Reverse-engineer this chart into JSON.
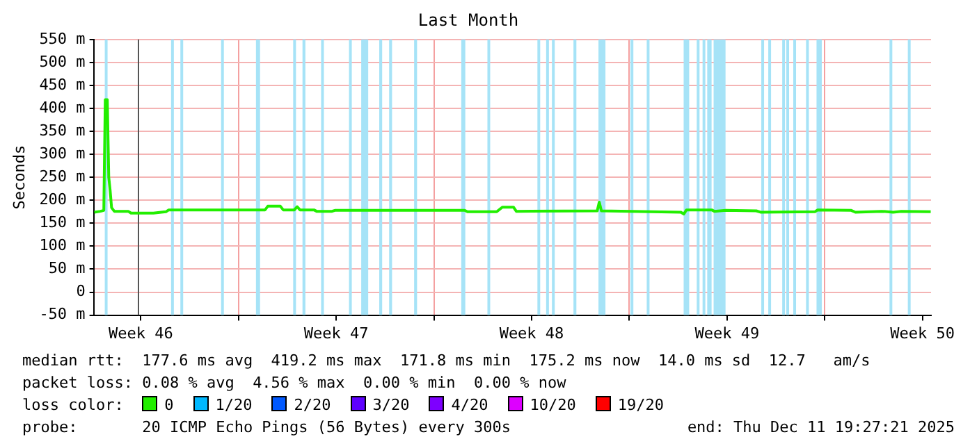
{
  "chart_data": {
    "type": "line",
    "title": "Last Month",
    "ylabel": "Seconds",
    "xlim": [
      "2025-11-11T19:27",
      "2025-12-11T19:27"
    ],
    "xticks": [
      {
        "value": "2025-11-13T12:00",
        "label": "Week 46"
      },
      {
        "value": "2025-11-17",
        "label": null
      },
      {
        "value": "2025-11-20T12:00",
        "label": "Week 47"
      },
      {
        "value": "2025-11-24",
        "label": null
      },
      {
        "value": "2025-11-27T12:00",
        "label": "Week 48"
      },
      {
        "value": "2025-12-01",
        "label": null
      },
      {
        "value": "2025-12-04T12:00",
        "label": "Week 49"
      },
      {
        "value": "2025-12-08",
        "label": null
      },
      {
        "value": "2025-12-11T12:00",
        "label": "Week 50"
      }
    ],
    "ylim": [
      -50,
      550
    ],
    "yticks": [
      {
        "value": -50,
        "label": "-50 m"
      },
      0,
      {
        "value": 50,
        "label": "50 m"
      },
      {
        "value": 100,
        "label": "100 m"
      },
      {
        "value": 150,
        "label": "150 m"
      },
      {
        "value": 200,
        "label": "200 m"
      },
      {
        "value": 250,
        "label": "250 m"
      },
      {
        "value": 300,
        "label": "300 m"
      },
      {
        "value": 350,
        "label": "350 m"
      },
      {
        "value": 400,
        "label": "400 m"
      },
      {
        "value": 450,
        "label": "450 m"
      },
      {
        "value": 500,
        "label": "500 m"
      },
      {
        "value": 550,
        "label": "550 m"
      }
    ],
    "grid": true,
    "marker": "none",
    "line_style": "solid",
    "legend": "bottom",
    "legend_title": "loss color:",
    "x": [
      "2025-11-11T20:00",
      "2025-11-12T01:15",
      "2025-11-12T04:10",
      "2025-11-12T05:25",
      "2025-11-12T07:10",
      "2025-11-12T08:25",
      "2025-11-12T09:35",
      "2025-11-12T10:50",
      "2025-11-12T13:10",
      "2025-11-13T01:10",
      "2025-11-13T03:35",
      "2025-11-13T22:50",
      "2025-11-14T09:35",
      "2025-11-14T12:00",
      "2025-11-17T22:50",
      "2025-11-18T01:10",
      "2025-11-18T12:00",
      "2025-11-18T14:25",
      "2025-11-19T00:00",
      "2025-11-19T02:25",
      "2025-11-19T04:50",
      "2025-11-19T16:50",
      "2025-11-19T19:10",
      "2025-11-20T08:25",
      "2025-11-20T10:50",
      "2025-11-25T02:25",
      "2025-11-25T04:50",
      "2025-11-26T06:00",
      "2025-11-26T08:25",
      "2025-11-26T10:50",
      "2025-11-26T20:25",
      "2025-11-26T22:50",
      "2025-11-29T20:25",
      "2025-11-29T22:10",
      "2025-11-30T00:00",
      "2025-12-02T20:25",
      "2025-12-02T22:50",
      "2025-12-03T01:10",
      "2025-12-03T22:50",
      "2025-12-04T01:10",
      "2025-12-04T10:50",
      "2025-12-05T13:10",
      "2025-12-05T16:50",
      "2025-12-07T15:35",
      "2025-12-07T18:00",
      "2025-12-08T22:50",
      "2025-12-09T02:25",
      "2025-12-10T01:10",
      "2025-12-10T10:50",
      "2025-12-10T18:00",
      "2025-12-11T19:10"
    ],
    "series": [
      {
        "name": "0",
        "color": "#22ee00",
        "values": [
          174,
          176,
          178,
          419,
          419,
          250,
          222,
          184,
          176,
          176,
          172,
          172,
          175,
          179,
          179,
          187,
          187,
          179,
          179,
          186,
          179,
          179,
          176,
          176,
          178,
          178,
          175,
          175,
          180,
          185,
          185,
          176,
          177,
          196,
          177,
          174,
          170,
          179,
          179,
          176,
          178,
          177,
          174,
          175,
          179,
          178,
          174,
          176,
          174,
          176,
          175
        ]
      },
      {
        "name": "1/20",
        "color": "#00b8ff",
        "values": [
          null,
          null,
          null,
          null,
          null,
          null,
          null,
          null,
          null,
          null,
          null,
          null,
          null,
          null,
          null,
          null,
          null,
          null,
          null,
          null,
          null,
          null,
          null,
          null,
          null,
          null,
          null,
          null,
          null,
          null,
          null,
          null,
          null,
          null,
          null,
          null,
          null,
          null,
          null,
          null,
          null,
          null,
          null,
          null,
          null,
          null,
          null,
          null,
          null,
          null,
          null
        ]
      },
      {
        "name": "2/20",
        "color": "#0059ff",
        "values": [
          null,
          null,
          null,
          null,
          null,
          null,
          null,
          null,
          null,
          null,
          null,
          null,
          null,
          null,
          null,
          null,
          null,
          null,
          null,
          null,
          null,
          null,
          null,
          null,
          null,
          null,
          null,
          null,
          null,
          null,
          null,
          null,
          null,
          null,
          null,
          null,
          null,
          null,
          null,
          null,
          null,
          null,
          null,
          null,
          null,
          null,
          null,
          null,
          null,
          null,
          null
        ]
      },
      {
        "name": "3/20",
        "color": "#5e00ff",
        "values": [
          null,
          null,
          null,
          null,
          null,
          null,
          null,
          null,
          null,
          null,
          null,
          null,
          null,
          null,
          null,
          null,
          null,
          null,
          null,
          null,
          null,
          null,
          null,
          null,
          null,
          null,
          null,
          null,
          null,
          null,
          null,
          null,
          null,
          null,
          null,
          null,
          null,
          null,
          null,
          null,
          null,
          null,
          null,
          null,
          null,
          null,
          null,
          null,
          null,
          null,
          null
        ]
      },
      {
        "name": "4/20",
        "color": "#7e00ff",
        "values": [
          null,
          null,
          null,
          null,
          null,
          null,
          null,
          null,
          null,
          null,
          null,
          null,
          null,
          null,
          null,
          null,
          null,
          null,
          null,
          null,
          null,
          null,
          null,
          null,
          null,
          null,
          null,
          null,
          null,
          null,
          null,
          null,
          null,
          null,
          null,
          null,
          null,
          null,
          null,
          null,
          null,
          null,
          null,
          null,
          null,
          null,
          null,
          null,
          null,
          null,
          null
        ]
      },
      {
        "name": "10/20",
        "color": "#dd00ff",
        "values": [
          null,
          null,
          null,
          null,
          null,
          null,
          null,
          null,
          null,
          null,
          null,
          null,
          null,
          null,
          null,
          null,
          null,
          null,
          null,
          null,
          null,
          null,
          null,
          null,
          null,
          null,
          null,
          null,
          null,
          null,
          null,
          null,
          null,
          null,
          null,
          null,
          null,
          null,
          null,
          null,
          null,
          null,
          null,
          null,
          null,
          null,
          null,
          null,
          null,
          null,
          null
        ]
      },
      {
        "name": "19/20",
        "color": "#ff0000",
        "values": [
          null,
          null,
          null,
          null,
          null,
          null,
          null,
          null,
          null,
          null,
          null,
          null,
          null,
          null,
          null,
          null,
          null,
          null,
          null,
          null,
          null,
          null,
          null,
          null,
          null,
          null,
          null,
          null,
          null,
          null,
          null,
          null,
          null,
          null,
          null,
          null,
          null,
          null,
          null,
          null,
          null,
          null,
          null,
          null,
          null,
          null,
          null,
          null,
          null,
          null,
          null
        ]
      }
    ],
    "ref_lines": [
      {
        "axis": "x",
        "value": "2025-11-13T09:35",
        "color": "#555555"
      }
    ],
    "bands": [
      {
        "axis": "x",
        "from": "2025-11-12T05:00",
        "to": "2025-11-12T07:00",
        "color": "#a6e3f7"
      },
      {
        "axis": "x",
        "from": "2025-11-14T14:00",
        "to": "2025-11-14T15:30",
        "color": "#a6e3f7"
      },
      {
        "axis": "x",
        "from": "2025-11-14T22:00",
        "to": "2025-11-14T23:30",
        "color": "#a6e3f7"
      },
      {
        "axis": "x",
        "from": "2025-11-16T09:00",
        "to": "2025-11-16T10:15",
        "color": "#a6e3f7"
      },
      {
        "axis": "x",
        "from": "2025-11-17T15:00",
        "to": "2025-11-17T18:30",
        "color": "#a6e3f7"
      },
      {
        "axis": "x",
        "from": "2025-11-18T23:00",
        "to": "2025-11-19T01:00",
        "color": "#a6e3f7"
      },
      {
        "axis": "x",
        "from": "2025-11-19T07:00",
        "to": "2025-11-19T09:30",
        "color": "#a6e3f7"
      },
      {
        "axis": "x",
        "from": "2025-11-19T23:00",
        "to": "2025-11-20T01:00",
        "color": "#a6e3f7"
      },
      {
        "axis": "x",
        "from": "2025-11-20T23:00",
        "to": "2025-11-21T01:00",
        "color": "#a6e3f7"
      },
      {
        "axis": "x",
        "from": "2025-11-21T09:30",
        "to": "2025-11-21T15:30",
        "color": "#a6e3f7"
      },
      {
        "axis": "x",
        "from": "2025-11-22T01:00",
        "to": "2025-11-22T03:30",
        "color": "#a6e3f7"
      },
      {
        "axis": "x",
        "from": "2025-11-22T09:30",
        "to": "2025-11-22T12:00",
        "color": "#a6e3f7"
      },
      {
        "axis": "x",
        "from": "2025-11-23T07:00",
        "to": "2025-11-23T09:30",
        "color": "#a6e3f7"
      },
      {
        "axis": "x",
        "from": "2025-11-24T23:30",
        "to": "2025-11-25T03:00",
        "color": "#a6e3f7"
      },
      {
        "axis": "x",
        "from": "2025-11-25T22:00",
        "to": "2025-11-25T23:30",
        "color": "#a6e3f7"
      },
      {
        "axis": "x",
        "from": "2025-11-27T17:00",
        "to": "2025-11-27T19:00",
        "color": "#a6e3f7"
      },
      {
        "axis": "x",
        "from": "2025-11-28T00:30",
        "to": "2025-11-28T02:00",
        "color": "#a6e3f7"
      },
      {
        "axis": "x",
        "from": "2025-11-28T05:30",
        "to": "2025-11-28T06:30",
        "color": "#a6e3f7"
      },
      {
        "axis": "x",
        "from": "2025-11-29T00:00",
        "to": "2025-11-29T02:30",
        "color": "#a6e3f7"
      },
      {
        "axis": "x",
        "from": "2025-11-29T21:30",
        "to": "2025-11-30T03:30",
        "color": "#a6e3f7"
      },
      {
        "axis": "x",
        "from": "2025-12-01T01:00",
        "to": "2025-12-01T03:30",
        "color": "#a6e3f7"
      },
      {
        "axis": "x",
        "from": "2025-12-01T15:00",
        "to": "2025-12-01T16:15",
        "color": "#a6e3f7"
      },
      {
        "axis": "x",
        "from": "2025-12-02T22:45",
        "to": "2025-12-03T03:30",
        "color": "#a6e3f7"
      },
      {
        "axis": "x",
        "from": "2025-12-03T10:00",
        "to": "2025-12-03T11:30",
        "color": "#a6e3f7"
      },
      {
        "axis": "x",
        "from": "2025-12-03T15:00",
        "to": "2025-12-03T16:15",
        "color": "#a6e3f7"
      },
      {
        "axis": "x",
        "from": "2025-12-03T19:00",
        "to": "2025-12-03T22:45",
        "color": "#a6e3f7"
      },
      {
        "axis": "x",
        "from": "2025-12-04T00:30",
        "to": "2025-12-04T10:45",
        "color": "#a6e3f7"
      },
      {
        "axis": "x",
        "from": "2025-12-05T17:30",
        "to": "2025-12-05T18:30",
        "color": "#a6e3f7"
      },
      {
        "axis": "x",
        "from": "2025-12-05T23:30",
        "to": "2025-12-06T00:30",
        "color": "#a6e3f7"
      },
      {
        "axis": "x",
        "from": "2025-12-06T11:30",
        "to": "2025-12-06T12:30",
        "color": "#a6e3f7"
      },
      {
        "axis": "x",
        "from": "2025-12-06T15:00",
        "to": "2025-12-06T16:15",
        "color": "#a6e3f7"
      },
      {
        "axis": "x",
        "from": "2025-12-06T21:00",
        "to": "2025-12-06T22:15",
        "color": "#a6e3f7"
      },
      {
        "axis": "x",
        "from": "2025-12-07T08:00",
        "to": "2025-12-07T09:00",
        "color": "#a6e3f7"
      },
      {
        "axis": "x",
        "from": "2025-12-07T17:00",
        "to": "2025-12-07T21:30",
        "color": "#a6e3f7"
      },
      {
        "axis": "x",
        "from": "2025-12-10T07:45",
        "to": "2025-12-10T09:00",
        "color": "#a6e3f7"
      },
      {
        "axis": "x",
        "from": "2025-12-10T23:30",
        "to": "2025-12-11T00:30",
        "color": "#a6e3f7"
      }
    ],
    "annotations": [
      "median rtt:  177.6 ms avg  419.2 ms max  171.8 ms min  175.2 ms now  14.0 ms sd  12.7   am/s",
      "packet loss: 0.08 % avg  4.56 % max  0.00 % min  0.00 % now",
      "probe:       20 ICMP Echo Pings (56 Bytes) every 300s",
      "end: Thu Dec 11 19:27:21 2025"
    ]
  }
}
